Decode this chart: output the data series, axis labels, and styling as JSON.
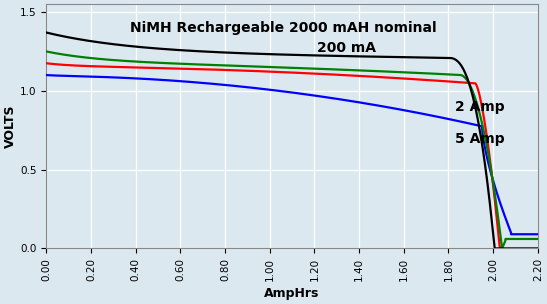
{
  "title_line1": "NiMH Rechargeable 2000 mAH nominal",
  "title_line2": "200 mA",
  "xlabel": "AmpHrs",
  "ylabel": "VOLTS",
  "xlim": [
    0.0,
    2.2
  ],
  "ylim": [
    0.0,
    1.55
  ],
  "xticks": [
    0.0,
    0.2,
    0.4,
    0.6,
    0.8,
    1.0,
    1.2,
    1.4,
    1.6,
    1.8,
    2.0,
    2.2
  ],
  "yticks": [
    0.0,
    0.5,
    1.0,
    1.5
  ],
  "background_color": "#dce8f0",
  "grid_color": "#ffffff",
  "line_colors": [
    "black",
    "green",
    "red",
    "blue"
  ],
  "annotation_2amp": "2 Amp",
  "annotation_5amp": "5 Amp",
  "title_fontsize": 10,
  "label_fontsize": 9,
  "tick_fontsize": 7.5,
  "annot_fontsize": 10
}
